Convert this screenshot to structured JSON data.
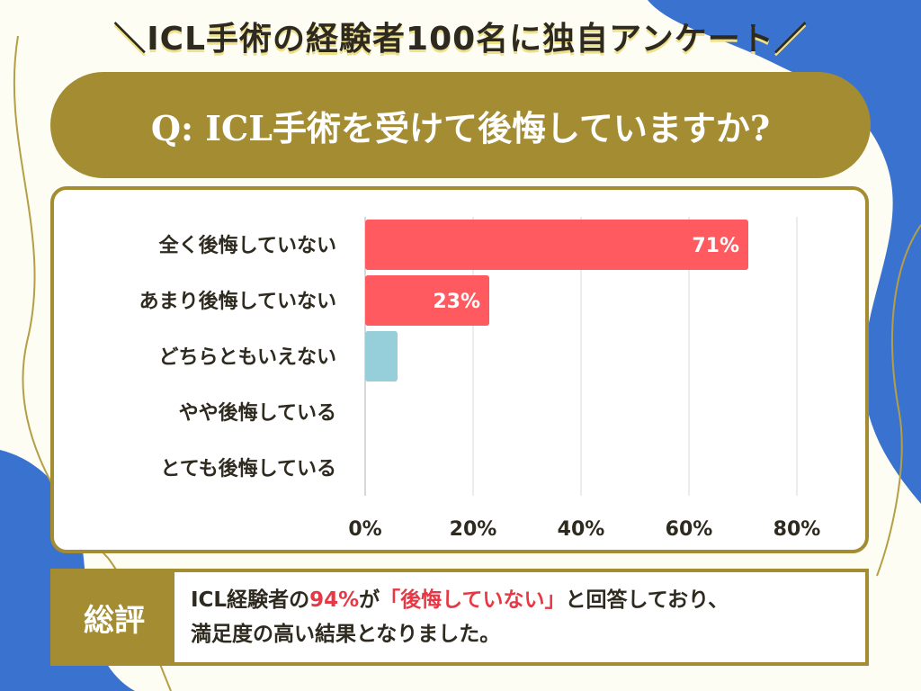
{
  "headline": "＼ICL手術の経験者100名に独自アンケート／",
  "question": "Q: ICL手術を受けて後悔していますか?",
  "colors": {
    "accent": "#a38c31",
    "bar_red": "#ff5a5f",
    "bar_blue": "#96ced9",
    "highlight": "#e73945",
    "blob_blue": "#3a73cf"
  },
  "chart_data": {
    "type": "bar",
    "orientation": "horizontal",
    "categories": [
      "全く後悔していない",
      "あまり後悔していない",
      "どちらともいえない",
      "やや後悔している",
      "とても後悔している"
    ],
    "values": [
      71,
      23,
      6,
      0,
      0
    ],
    "value_labels": [
      "71%",
      "23%",
      "",
      "",
      ""
    ],
    "bar_colors": [
      "#ff5a5f",
      "#ff5a5f",
      "#96ced9",
      "#ff5a5f",
      "#ff5a5f"
    ],
    "xlim": [
      0,
      80
    ],
    "xticks": [
      "0%",
      "20%",
      "40%",
      "60%",
      "80%"
    ],
    "grid": true
  },
  "summary": {
    "label": "総評",
    "line1_pre": "ICL経験者の",
    "line1_pct": "94%",
    "line1_mid": "が",
    "line1_quote": "「後悔していない」",
    "line1_post": "と回答しており、",
    "line2": "満足度の高い結果となりました。"
  }
}
